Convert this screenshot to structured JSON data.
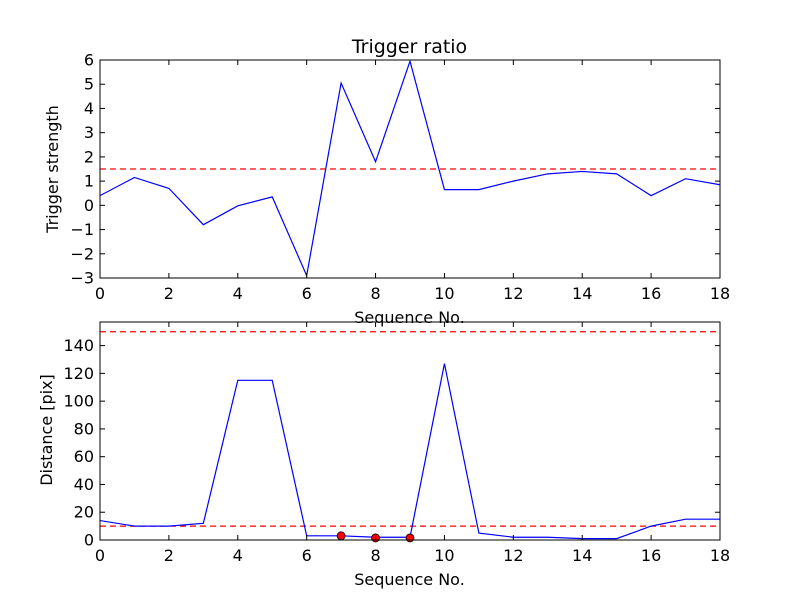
{
  "chart_data": [
    {
      "type": "line",
      "title": "Trigger ratio",
      "xlabel": "Sequence No.",
      "ylabel": "Trigger strength",
      "xlim": [
        0,
        18
      ],
      "ylim": [
        -3,
        6
      ],
      "xticks": [
        0,
        2,
        4,
        6,
        8,
        10,
        12,
        14,
        16,
        18
      ],
      "yticks": [
        -3,
        -2,
        -1,
        0,
        1,
        2,
        3,
        4,
        5,
        6
      ],
      "xtick_labels": [
        "0",
        "2",
        "4",
        "6",
        "8",
        "10",
        "12",
        "14",
        "16",
        "18"
      ],
      "ytick_labels": [
        "−3",
        "−2",
        "−1",
        "0",
        "1",
        "2",
        "3",
        "4",
        "5",
        "6"
      ],
      "grid": false,
      "series": [
        {
          "color": "#0000ff",
          "style": "solid",
          "x": [
            0,
            1,
            2,
            3,
            4,
            5,
            6,
            7,
            8,
            9,
            10,
            11,
            12,
            13,
            14,
            15,
            16,
            17,
            18
          ],
          "y": [
            0.4,
            1.15,
            0.7,
            -0.8,
            -0.02,
            0.35,
            -2.9,
            5.05,
            1.8,
            5.95,
            0.65,
            0.65,
            1.0,
            1.3,
            1.4,
            1.3,
            0.4,
            1.1,
            0.85
          ]
        }
      ],
      "hlines": [
        {
          "y": 1.5,
          "color": "#ff0000",
          "style": "dashed"
        }
      ]
    },
    {
      "type": "line",
      "title": "",
      "xlabel": "Sequence No.",
      "ylabel": "Distance [pix]",
      "xlim": [
        0,
        18
      ],
      "ylim": [
        0,
        157
      ],
      "xticks": [
        0,
        2,
        4,
        6,
        8,
        10,
        12,
        14,
        16,
        18
      ],
      "yticks": [
        0,
        20,
        40,
        60,
        80,
        100,
        120,
        140
      ],
      "xtick_labels": [
        "0",
        "2",
        "4",
        "6",
        "8",
        "10",
        "12",
        "14",
        "16",
        "18"
      ],
      "ytick_labels": [
        "0",
        "20",
        "40",
        "60",
        "80",
        "100",
        "120",
        "140"
      ],
      "grid": false,
      "series": [
        {
          "color": "#0000ff",
          "style": "solid",
          "x": [
            0,
            1,
            2,
            3,
            4,
            5,
            6,
            7,
            8,
            9,
            10,
            11,
            12,
            13,
            14,
            15,
            16,
            17,
            18
          ],
          "y": [
            14,
            10,
            10,
            12,
            115,
            115,
            3,
            3,
            2,
            2,
            127,
            5,
            2,
            2,
            1,
            1,
            10,
            15,
            15
          ]
        }
      ],
      "markers": {
        "color": "#ff0000",
        "x": [
          7,
          8,
          9
        ],
        "y": [
          3,
          1.5,
          1.5
        ]
      },
      "hlines": [
        {
          "y": 150,
          "color": "#ff0000",
          "style": "dashed"
        },
        {
          "y": 10,
          "color": "#ff0000",
          "style": "dashed"
        }
      ]
    }
  ]
}
